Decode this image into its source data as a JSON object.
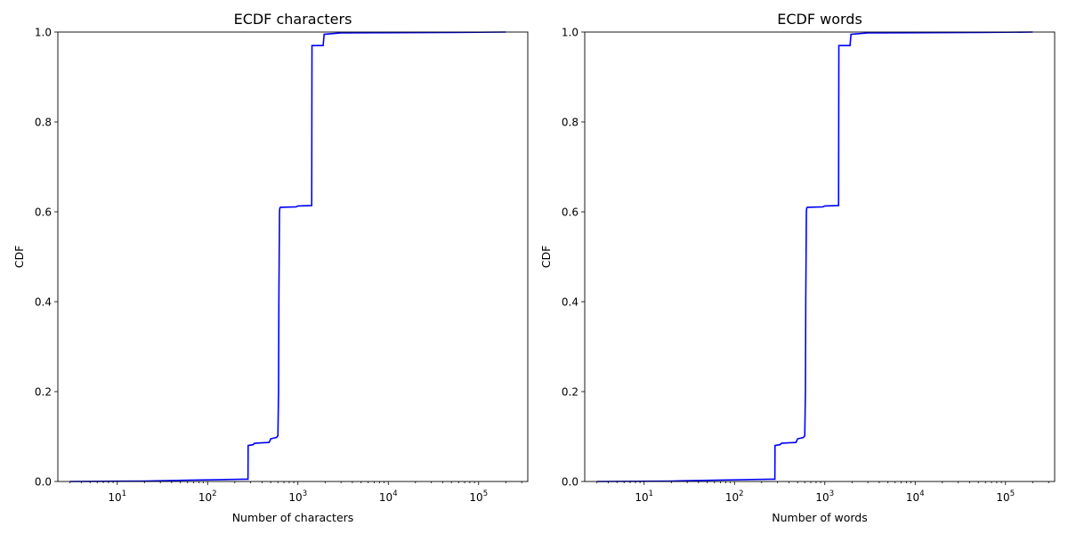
{
  "chart_data": [
    {
      "type": "line",
      "title": "ECDF characters",
      "xlabel": "Number of characters",
      "ylabel": "CDF",
      "xscale": "log",
      "xlim": [
        2.2,
        350000
      ],
      "ylim": [
        0,
        1
      ],
      "grid": false,
      "xticks": [
        {
          "value": 10,
          "base": "10",
          "exp": "1"
        },
        {
          "value": 100,
          "base": "10",
          "exp": "2"
        },
        {
          "value": 1000,
          "base": "10",
          "exp": "3"
        },
        {
          "value": 10000,
          "base": "10",
          "exp": "4"
        },
        {
          "value": 100000,
          "base": "10",
          "exp": "5"
        }
      ],
      "yticks": [
        "0.0",
        "0.2",
        "0.4",
        "0.6",
        "0.8",
        "1.0"
      ],
      "series": [
        {
          "color": "#0000ff",
          "x": [
            3,
            20,
            60,
            250,
            280,
            281,
            320,
            330,
            480,
            500,
            580,
            600,
            610,
            615,
            620,
            625,
            630,
            640,
            950,
            1000,
            1420,
            1430,
            1900,
            1950,
            3000,
            50000,
            200000
          ],
          "y": [
            0,
            0.001,
            0.003,
            0.005,
            0.005,
            0.08,
            0.082,
            0.085,
            0.087,
            0.095,
            0.098,
            0.102,
            0.2,
            0.4,
            0.5,
            0.6,
            0.608,
            0.61,
            0.611,
            0.613,
            0.614,
            0.97,
            0.97,
            0.995,
            0.998,
            0.999,
            1.0
          ]
        }
      ]
    },
    {
      "type": "line",
      "title": "ECDF words",
      "xlabel": "Number of words",
      "ylabel": "CDF",
      "xscale": "log",
      "xlim": [
        2.2,
        350000
      ],
      "ylim": [
        0,
        1
      ],
      "grid": false,
      "xticks": [
        {
          "value": 10,
          "base": "10",
          "exp": "1"
        },
        {
          "value": 100,
          "base": "10",
          "exp": "2"
        },
        {
          "value": 1000,
          "base": "10",
          "exp": "3"
        },
        {
          "value": 10000,
          "base": "10",
          "exp": "4"
        },
        {
          "value": 100000,
          "base": "10",
          "exp": "5"
        }
      ],
      "yticks": [
        "0.0",
        "0.2",
        "0.4",
        "0.6",
        "0.8",
        "1.0"
      ],
      "series": [
        {
          "color": "#0000ff",
          "x": [
            3,
            20,
            60,
            250,
            280,
            281,
            320,
            330,
            480,
            500,
            580,
            600,
            610,
            615,
            620,
            625,
            630,
            640,
            950,
            1000,
            1420,
            1430,
            1900,
            1950,
            3000,
            50000,
            200000
          ],
          "y": [
            0,
            0.001,
            0.003,
            0.005,
            0.005,
            0.08,
            0.082,
            0.085,
            0.087,
            0.095,
            0.098,
            0.102,
            0.2,
            0.4,
            0.5,
            0.6,
            0.608,
            0.61,
            0.611,
            0.613,
            0.614,
            0.97,
            0.97,
            0.995,
            0.998,
            0.999,
            1.0
          ]
        }
      ]
    }
  ]
}
